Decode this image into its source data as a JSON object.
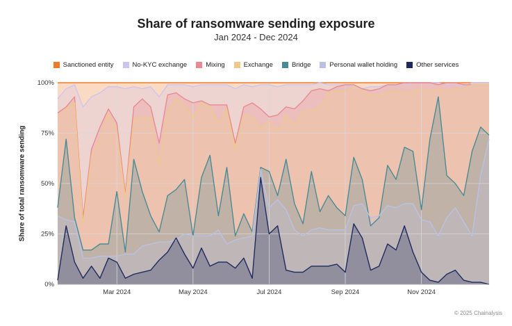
{
  "chart_data": {
    "type": "area",
    "stacking": "percent",
    "title": "Share of ransomware sending exposure",
    "subtitle": "Jan 2024 - Dec 2024",
    "ylabel": "Share of total ransomware sending",
    "xlabel": "",
    "ylim": [
      0,
      100
    ],
    "grid": true,
    "legend_position": "top",
    "x_tick_labels": [
      "Mar 2024",
      "May 2024",
      "Jul 2024",
      "Sep 2024",
      "Nov 2024"
    ],
    "y_tick_labels": [
      "0%",
      "25%",
      "50%",
      "75%",
      "100%"
    ],
    "series": [
      {
        "name": "Other services",
        "color": "#1e2a5e",
        "values": [
          2,
          29,
          11,
          3,
          9,
          3,
          13,
          11,
          3,
          5,
          6,
          7,
          12,
          16,
          23,
          15,
          8,
          18,
          9,
          11,
          11,
          8,
          13,
          3,
          53,
          25,
          29,
          7,
          6,
          6,
          9,
          9,
          9,
          10,
          6,
          30,
          23,
          7,
          9,
          20,
          17,
          29,
          16,
          6,
          2,
          1,
          5,
          7,
          2,
          1,
          1,
          0
        ]
      },
      {
        "name": "Personal wallet holding",
        "color": "#b9c2e4",
        "values": [
          34,
          32,
          31,
          13,
          13,
          14,
          14,
          14,
          15,
          15,
          19,
          20,
          21,
          21,
          22,
          25,
          24,
          24,
          24,
          27,
          20,
          22,
          23,
          24,
          57,
          38,
          42,
          37,
          27,
          24,
          27,
          28,
          27,
          27,
          27,
          39,
          40,
          33,
          34,
          39,
          38,
          40,
          40,
          32,
          31,
          24,
          33,
          38,
          31,
          24,
          54,
          72
        ]
      },
      {
        "name": "Bridge",
        "color": "#4a8a94",
        "values": [
          38,
          72,
          33,
          17,
          17,
          20,
          20,
          46,
          16,
          62,
          46,
          34,
          26,
          44,
          47,
          52,
          24,
          53,
          64,
          34,
          58,
          24,
          35,
          26,
          58,
          56,
          44,
          62,
          40,
          30,
          56,
          36,
          44,
          38,
          34,
          63,
          52,
          29,
          33,
          59,
          52,
          68,
          66,
          37,
          72,
          93,
          54,
          50,
          44,
          66,
          78,
          74
        ]
      },
      {
        "name": "Exchange",
        "color": "#f0c98a",
        "values": [
          83,
          87,
          90,
          30,
          64,
          72,
          85,
          76,
          43,
          82,
          83,
          83,
          60,
          86,
          92,
          89,
          83,
          90,
          88,
          80,
          87,
          67,
          84,
          83,
          78,
          81,
          76,
          84,
          79,
          86,
          86,
          88,
          95,
          96,
          96,
          98,
          96,
          94,
          94,
          95,
          96,
          95,
          96,
          97,
          96,
          97,
          96,
          97,
          97,
          99,
          99,
          99
        ]
      },
      {
        "name": "Mixing",
        "color": "#e88a8f",
        "values": [
          85,
          88,
          93,
          33,
          67,
          78,
          87,
          80,
          45,
          88,
          92,
          88,
          70,
          94,
          95,
          92,
          90,
          91,
          89,
          89,
          89,
          70,
          88,
          90,
          87,
          83,
          84,
          88,
          87,
          91,
          96,
          97,
          96,
          98,
          99,
          99,
          97,
          96,
          97,
          99,
          99,
          100,
          100,
          100,
          100,
          99,
          100,
          100,
          99,
          99,
          99,
          99
        ]
      },
      {
        "name": "No-KYC exchange",
        "color": "#cdc4f0",
        "values": [
          92,
          97,
          99,
          88,
          93,
          95,
          98,
          98,
          97,
          98,
          97,
          98,
          93,
          99,
          99,
          99,
          98,
          99,
          99,
          99,
          99,
          97,
          99,
          98,
          99,
          99,
          98,
          99,
          99,
          99,
          99,
          100,
          99,
          99,
          99,
          98,
          97,
          98,
          98,
          99,
          99,
          99,
          100,
          100,
          100,
          100,
          99,
          99,
          98,
          100,
          100,
          100
        ]
      },
      {
        "name": "Sanctioned entity",
        "color": "#f07a2a",
        "values": [
          100,
          100,
          100,
          100,
          100,
          100,
          100,
          100,
          100,
          100,
          100,
          100,
          100,
          100,
          100,
          100,
          100,
          100,
          100,
          100,
          100,
          100,
          100,
          100,
          100,
          100,
          100,
          100,
          100,
          100,
          100,
          100,
          100,
          100,
          100,
          100,
          100,
          100,
          100,
          100,
          100,
          100,
          100,
          100,
          100,
          100,
          100,
          100,
          100,
          100,
          100,
          100
        ]
      }
    ],
    "legend_order": [
      "Sanctioned entity",
      "No-KYC exchange",
      "Mixing",
      "Exchange",
      "Bridge",
      "Personal wallet holding",
      "Other services"
    ],
    "values_are": "cumulative stacked top of each series (percent)"
  },
  "footer": {
    "copyright": "© 2025 Chainalysis"
  }
}
